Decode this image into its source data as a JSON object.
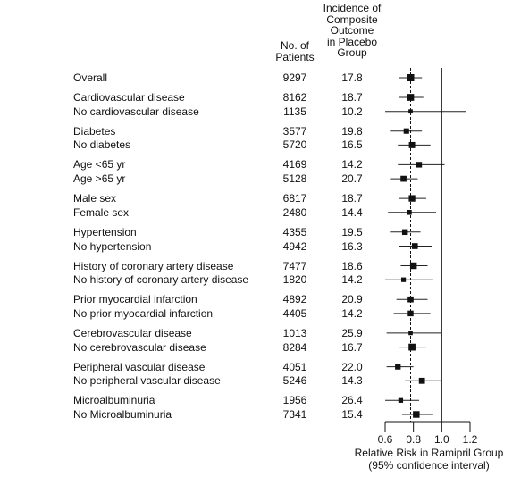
{
  "chart_data": {
    "type": "forest",
    "header": {
      "n_label_lines": [
        "No. of",
        "Patients"
      ],
      "inc_label_lines": [
        "Incidence of",
        "Composite",
        "Outcome",
        "in Placebo",
        "Group"
      ]
    },
    "xlabel_lines": [
      "Relative Risk in Ramipril Group",
      "(95% confidence interval)"
    ],
    "xticks": [
      "0.6",
      "0.8",
      "1.0",
      "1.2"
    ],
    "xlim": [
      0.6,
      1.2
    ],
    "reference_line": 0.78,
    "groups": [
      {
        "rows": [
          {
            "label": "Overall",
            "n": "9297",
            "incidence": "17.8",
            "rr": 0.78,
            "lo": 0.7,
            "hi": 0.86
          }
        ]
      },
      {
        "rows": [
          {
            "label": "Cardiovascular disease",
            "n": "8162",
            "incidence": "18.7",
            "rr": 0.78,
            "lo": 0.7,
            "hi": 0.87
          },
          {
            "label": "No cardiovascular disease",
            "n": "1135",
            "incidence": "10.2",
            "rr": 0.78,
            "lo": 0.6,
            "hi": 1.17
          }
        ]
      },
      {
        "rows": [
          {
            "label": "Diabetes",
            "n": "3577",
            "incidence": "19.8",
            "rr": 0.75,
            "lo": 0.64,
            "hi": 0.86
          },
          {
            "label": "No diabetes",
            "n": "5720",
            "incidence": "16.5",
            "rr": 0.79,
            "lo": 0.69,
            "hi": 0.92
          }
        ]
      },
      {
        "rows": [
          {
            "label": "Age <65 yr",
            "n": "4169",
            "incidence": "14.2",
            "rr": 0.84,
            "lo": 0.69,
            "hi": 1.02
          },
          {
            "label": "Age >65 yr",
            "n": "5128",
            "incidence": "20.7",
            "rr": 0.73,
            "lo": 0.64,
            "hi": 0.83
          }
        ]
      },
      {
        "rows": [
          {
            "label": "Male sex",
            "n": "6817",
            "incidence": "18.7",
            "rr": 0.79,
            "lo": 0.7,
            "hi": 0.89
          },
          {
            "label": "Female sex",
            "n": "2480",
            "incidence": "14.4",
            "rr": 0.77,
            "lo": 0.62,
            "hi": 0.96
          }
        ]
      },
      {
        "rows": [
          {
            "label": "Hypertension",
            "n": "4355",
            "incidence": "19.5",
            "rr": 0.74,
            "lo": 0.64,
            "hi": 0.85
          },
          {
            "label": "No hypertension",
            "n": "4942",
            "incidence": "16.3",
            "rr": 0.81,
            "lo": 0.7,
            "hi": 0.93
          }
        ]
      },
      {
        "rows": [
          {
            "label": "History of coronary artery disease",
            "n": "7477",
            "incidence": "18.6",
            "rr": 0.8,
            "lo": 0.71,
            "hi": 0.9
          },
          {
            "label": "No history of coronary artery disease",
            "n": "1820",
            "incidence": "14.2",
            "rr": 0.73,
            "lo": 0.57,
            "hi": 0.94
          }
        ]
      },
      {
        "rows": [
          {
            "label": "Prior myocardial infarction",
            "n": "4892",
            "incidence": "20.9",
            "rr": 0.78,
            "lo": 0.68,
            "hi": 0.9
          },
          {
            "label": "No prior myocardial infarction",
            "n": "4405",
            "incidence": "14.2",
            "rr": 0.78,
            "lo": 0.66,
            "hi": 0.92
          }
        ]
      },
      {
        "rows": [
          {
            "label": "Cerebrovascular disease",
            "n": "1013",
            "incidence": "25.9",
            "rr": 0.78,
            "lo": 0.61,
            "hi": 1.0
          },
          {
            "label": "No cerebrovascular disease",
            "n": "8284",
            "incidence": "16.7",
            "rr": 0.79,
            "lo": 0.7,
            "hi": 0.89
          }
        ]
      },
      {
        "rows": [
          {
            "label": "Peripheral vascular disease",
            "n": "4051",
            "incidence": "22.0",
            "rr": 0.69,
            "lo": 0.61,
            "hi": 0.8
          },
          {
            "label": "No peripheral vascular disease",
            "n": "5246",
            "incidence": "14.3",
            "rr": 0.86,
            "lo": 0.74,
            "hi": 1.0
          }
        ]
      },
      {
        "rows": [
          {
            "label": "Microalbuminuria",
            "n": "1956",
            "incidence": "26.4",
            "rr": 0.71,
            "lo": 0.6,
            "hi": 0.84
          },
          {
            "label": "No Microalbuminuria",
            "n": "7341",
            "incidence": "15.4",
            "rr": 0.82,
            "lo": 0.72,
            "hi": 0.94
          }
        ]
      }
    ]
  }
}
